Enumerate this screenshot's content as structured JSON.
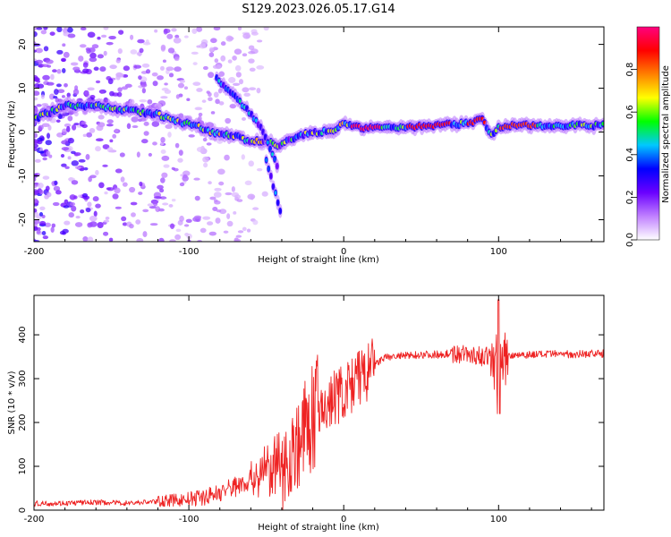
{
  "figure": {
    "title": "S129.2023.026.05.17.G14"
  },
  "chart_data": [
    {
      "type": "heatmap",
      "xlabel": "Height of straight line (km)",
      "ylabel": "Frequency (Hz)",
      "xlim": [
        -200,
        168
      ],
      "ylim": [
        -25,
        24
      ],
      "x_ticks": [
        -200,
        -100,
        0,
        100
      ],
      "y_ticks": [
        -20,
        -10,
        0,
        10,
        20
      ],
      "colorbar": {
        "label": "Normalized spectral amplitude",
        "range": [
          0,
          1
        ],
        "ticks": [
          "0.0",
          "0.2",
          "0.4",
          "0.6",
          "0.8"
        ],
        "tick_values": [
          0,
          0.2,
          0.4,
          0.6,
          0.8
        ],
        "colors": [
          "#ffffff",
          "#c080ff",
          "#6a00ff",
          "#0000ff",
          "#00c8ff",
          "#00ff00",
          "#ffff00",
          "#ff8000",
          "#ff0000",
          "#ff007f"
        ]
      },
      "ridges": [
        {
          "name": "main",
          "points": [
            [
              -200,
              3
            ],
            [
              -180,
              6
            ],
            [
              -160,
              6
            ],
            [
              -140,
              5
            ],
            [
              -120,
              4
            ],
            [
              -110,
              2.5
            ],
            [
              -100,
              2
            ],
            [
              -85,
              0
            ],
            [
              -70,
              -1
            ],
            [
              -60,
              -2
            ],
            [
              -50,
              -2
            ],
            [
              -42,
              -3
            ],
            [
              -35,
              -2
            ],
            [
              -25,
              -0.5
            ],
            [
              -15,
              0
            ],
            [
              -5,
              0.5
            ],
            [
              0,
              2
            ],
            [
              10,
              1
            ],
            [
              30,
              1
            ],
            [
              60,
              1.5
            ],
            [
              80,
              2
            ],
            [
              90,
              3
            ],
            [
              95,
              -1
            ],
            [
              100,
              1
            ],
            [
              110,
              1.5
            ],
            [
              130,
              1.5
            ],
            [
              168,
              1.5
            ]
          ]
        },
        {
          "name": "diagonal",
          "points": [
            [
              -82,
              12
            ],
            [
              -70,
              8
            ],
            [
              -55,
              2
            ],
            [
              -48,
              -3
            ],
            [
              -43,
              -8
            ]
          ]
        },
        {
          "name": "lower",
          "points": [
            [
              -50,
              -6
            ],
            [
              -45,
              -13
            ],
            [
              -40,
              -19
            ]
          ]
        }
      ]
    },
    {
      "type": "line",
      "xlabel": "Height of straight line (km)",
      "ylabel": "SNR (10 * v/v)",
      "xlim": [
        -200,
        168
      ],
      "ylim": [
        0,
        490
      ],
      "x_ticks": [
        -200,
        -100,
        0,
        100
      ],
      "y_ticks": [
        0,
        100,
        200,
        300,
        400
      ],
      "color": "#ee2222",
      "series": [
        {
          "x": [
            -200,
            -180,
            -160,
            -140,
            -120,
            -100,
            -90,
            -80,
            -70,
            -60,
            -50,
            -40,
            -35,
            -30,
            -25,
            -20,
            -15,
            -10,
            -5,
            0,
            5,
            10,
            15,
            20,
            25,
            30,
            40,
            50,
            60,
            70,
            80,
            90,
            95,
            100,
            105,
            110,
            120,
            130,
            140,
            150,
            160,
            168
          ],
          "y": [
            15,
            16,
            18,
            16,
            20,
            25,
            30,
            40,
            55,
            70,
            90,
            100,
            120,
            150,
            180,
            210,
            230,
            240,
            260,
            270,
            280,
            300,
            310,
            330,
            345,
            350,
            352,
            355,
            355,
            358,
            355,
            350,
            350,
            330,
            350,
            355,
            355,
            355,
            356,
            356,
            357,
            357
          ]
        }
      ]
    }
  ]
}
